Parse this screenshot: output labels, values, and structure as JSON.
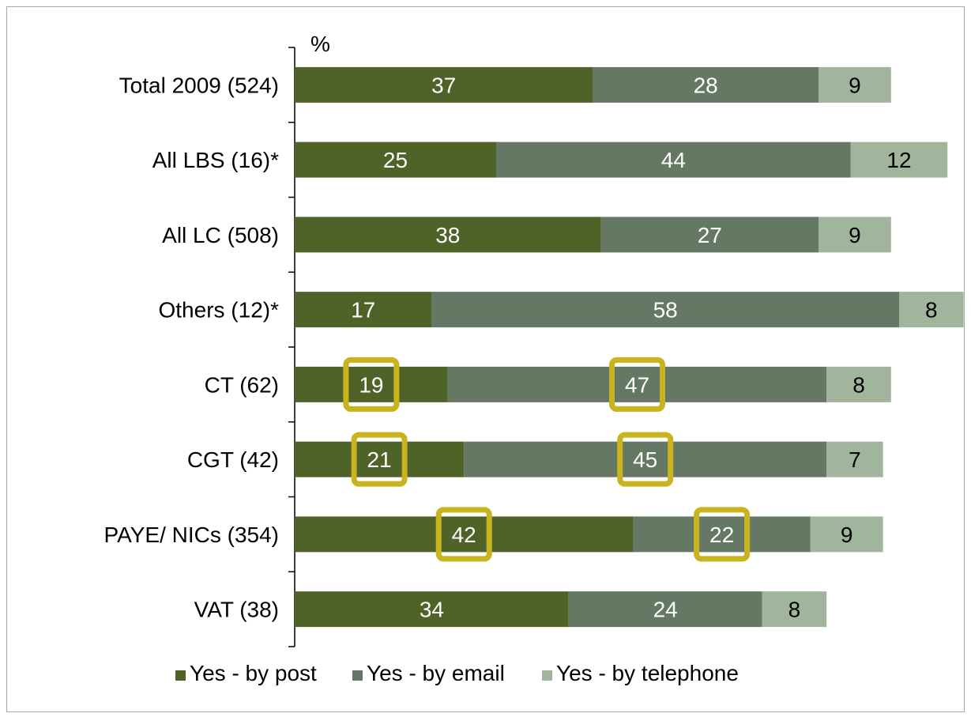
{
  "chart_data": {
    "type": "bar",
    "orientation": "horizontal",
    "stacked": true,
    "unit_label": "%",
    "categories": [
      "Total 2009 (524)",
      "All LBS (16)*",
      "All LC (508)",
      "Others (12)*",
      "CT (62)",
      "CGT (42)",
      "PAYE/ NICs (354)",
      "VAT (38)"
    ],
    "series": [
      {
        "name": "Yes - by post",
        "color": "#4f6228",
        "label_color": "#ffffff",
        "values": [
          37,
          25,
          38,
          17,
          19,
          21,
          42,
          34
        ]
      },
      {
        "name": "Yes - by email",
        "color": "#647864",
        "label_color": "#ffffff",
        "values": [
          28,
          44,
          27,
          58,
          47,
          45,
          22,
          24
        ]
      },
      {
        "name": "Yes - by telephone",
        "color": "#a1b59d",
        "label_color": "#000000",
        "values": [
          9,
          12,
          9,
          8,
          8,
          7,
          9,
          8
        ]
      }
    ],
    "highlighted": [
      {
        "category": "CT (62)",
        "series": "Yes - by post"
      },
      {
        "category": "CT (62)",
        "series": "Yes - by email"
      },
      {
        "category": "CGT (42)",
        "series": "Yes - by post"
      },
      {
        "category": "CGT (42)",
        "series": "Yes - by email"
      },
      {
        "category": "PAYE/ NICs (354)",
        "series": "Yes - by post"
      },
      {
        "category": "PAYE/ NICs (354)",
        "series": "Yes - by email"
      }
    ],
    "highlight_color": "#c8b41e",
    "xlim": [
      0,
      100
    ],
    "grid": false,
    "legend_position": "bottom"
  }
}
